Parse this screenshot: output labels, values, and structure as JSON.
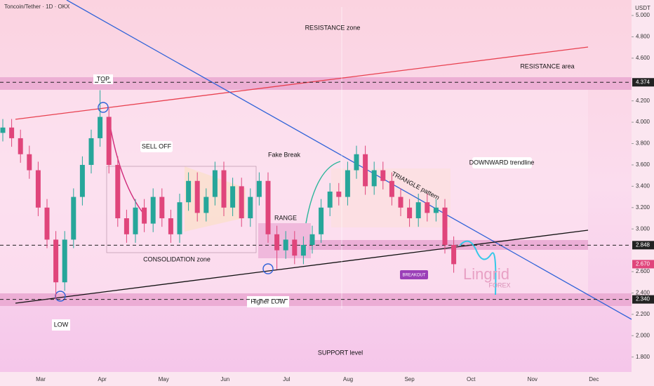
{
  "chart_data": {
    "type": "candlestick",
    "title": "Toncoin/Tether · 1D · OKX",
    "currency": "USDT",
    "up_color": "#26a69a",
    "down_color": "#e0457b",
    "x_labels": [
      "Mar",
      "Apr",
      "May",
      "Jun",
      "Jul",
      "Aug",
      "Sep",
      "Oct",
      "Nov",
      "Dec"
    ],
    "open": [
      3.9,
      3.95,
      3.85,
      3.7,
      3.55,
      3.2,
      2.9,
      2.5,
      2.9,
      3.3,
      3.6,
      3.85,
      4.05,
      3.6,
      3.1,
      2.95,
      3.2,
      3.05,
      3.3,
      3.1,
      2.95,
      3.25,
      3.45,
      3.15,
      3.3,
      3.55,
      3.2,
      3.4,
      3.1,
      3.3,
      3.45,
      2.95,
      2.8,
      2.9,
      2.75,
      2.85,
      2.95,
      3.2,
      3.35,
      3.3,
      3.55,
      3.7,
      3.4,
      3.55,
      3.45,
      3.3,
      3.2,
      3.1,
      3.25,
      3.15,
      3.2,
      2.85
    ],
    "high": [
      4.03,
      4.03,
      3.93,
      3.78,
      3.63,
      3.28,
      2.98,
      2.98,
      3.38,
      3.68,
      3.93,
      4.3,
      4.13,
      3.68,
      3.18,
      3.28,
      3.28,
      3.38,
      3.38,
      3.18,
      3.33,
      3.53,
      3.53,
      3.38,
      3.63,
      3.63,
      3.48,
      3.48,
      3.38,
      3.53,
      3.53,
      3.03,
      2.98,
      2.98,
      2.93,
      3.03,
      3.28,
      3.43,
      3.43,
      3.63,
      3.78,
      3.78,
      3.63,
      3.63,
      3.53,
      3.38,
      3.28,
      3.33,
      3.33,
      3.28,
      3.28,
      2.93
    ],
    "low": [
      3.82,
      3.77,
      3.62,
      3.47,
      3.12,
      2.82,
      2.34,
      2.42,
      2.82,
      3.22,
      3.52,
      3.77,
      3.52,
      3.02,
      2.87,
      2.87,
      2.97,
      2.97,
      3.02,
      2.87,
      2.87,
      3.17,
      3.07,
      3.07,
      3.22,
      3.12,
      3.12,
      3.02,
      3.02,
      3.22,
      2.87,
      2.62,
      2.72,
      2.67,
      2.67,
      2.77,
      2.87,
      3.12,
      3.22,
      3.22,
      3.47,
      3.32,
      3.32,
      3.37,
      3.22,
      3.12,
      3.02,
      3.02,
      3.07,
      3.07,
      2.77,
      2.59
    ],
    "close": [
      3.95,
      3.85,
      3.7,
      3.55,
      3.2,
      2.9,
      2.5,
      2.9,
      3.3,
      3.6,
      3.85,
      4.05,
      3.6,
      3.1,
      2.95,
      3.2,
      3.05,
      3.3,
      3.1,
      2.95,
      3.25,
      3.45,
      3.15,
      3.3,
      3.55,
      3.2,
      3.4,
      3.1,
      3.3,
      3.45,
      2.95,
      2.8,
      2.9,
      2.75,
      2.85,
      2.95,
      3.2,
      3.35,
      3.3,
      3.55,
      3.7,
      3.4,
      3.55,
      3.45,
      3.3,
      3.2,
      3.1,
      3.25,
      3.15,
      3.2,
      2.85,
      2.67
    ],
    "ylim": [
      1.66,
      5.145
    ],
    "yticks": [
      {
        "value": 5,
        "label": "5.000"
      },
      {
        "value": 4.8,
        "label": "4.800"
      },
      {
        "value": 4.6,
        "label": "4.600"
      },
      {
        "value": 4.2,
        "label": "4.200"
      },
      {
        "value": 4,
        "label": "4.000"
      },
      {
        "value": 3.8,
        "label": "3.800"
      },
      {
        "value": 3.6,
        "label": "3.600"
      },
      {
        "value": 3.4,
        "label": "3.400"
      },
      {
        "value": 3.2,
        "label": "3.200"
      },
      {
        "value": 3,
        "label": "3.000"
      },
      {
        "value": 2.6,
        "label": "2.600"
      },
      {
        "value": 2.4,
        "label": "2.400"
      },
      {
        "value": 2.2,
        "label": "2.200"
      },
      {
        "value": 2,
        "label": "2.000"
      },
      {
        "value": 1.8,
        "label": "1.800"
      }
    ],
    "levels": [
      4.374,
      2.848,
      {
        "value": 2.34,
        "label": "2.340"
      }
    ],
    "last_price": {
      "value": 2.67,
      "label": "2.670"
    },
    "annotations": {
      "resistance_zone": "RESISTANCE zone",
      "resistance_area": "RESISTANCE area",
      "top": "TOP",
      "sell_off": "SELL OFF",
      "fake_break": "Fake Break",
      "downward": "DOWNWARD trendline",
      "triangle": "TRIANGLE pattern",
      "range": "RANGE",
      "consolidation": "CONSOLIDATION zone",
      "breakout": "BREAKOUT",
      "low": "LOW",
      "higher_low": "Higher LOW",
      "support": "SUPPORT level",
      "brand": "Lingrid",
      "brand_sub": "FOREX"
    }
  }
}
